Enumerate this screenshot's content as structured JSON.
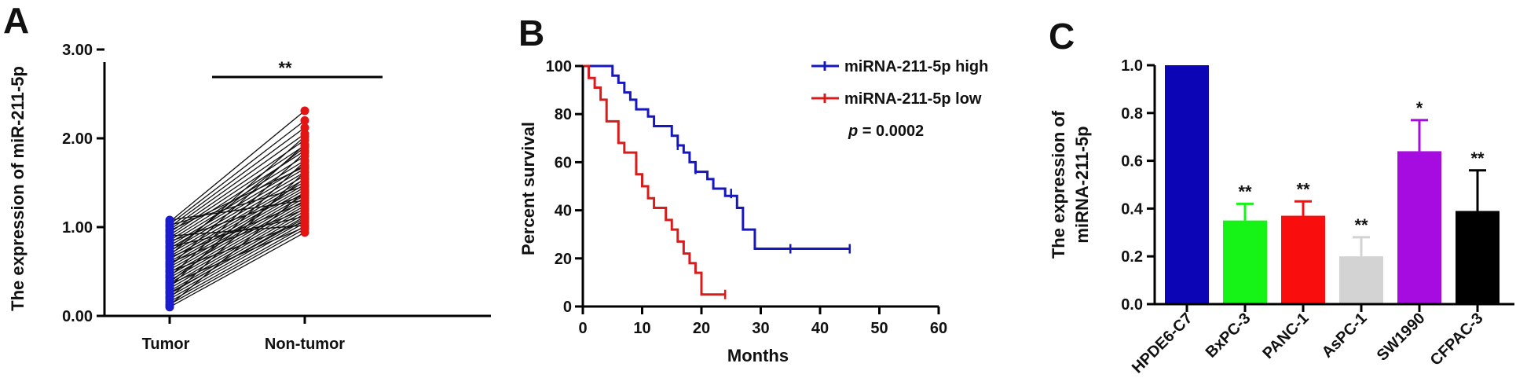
{
  "panel_labels": [
    "A",
    "B",
    "C"
  ],
  "colors": {
    "tumor": "#1c1ccf",
    "nontumor": "#e31414",
    "high": "#1717c0",
    "low": "#d81b1b",
    "axis": "#000000",
    "line": "#111111"
  },
  "panel_a": {
    "significance": "**"
  },
  "panel_b": {
    "pvalue_italic": "p",
    "pvalue_rest": " = 0.0002"
  },
  "panel_c": {
    "significance": [
      "",
      "**",
      "**",
      "**",
      "*",
      "**"
    ]
  },
  "chart_data": [
    {
      "type": "scatter",
      "title": "",
      "xlabel": "",
      "ylabel": "The expression of miR-211-5p",
      "ylim": [
        0,
        3
      ],
      "yticks": [
        "0.00",
        "1.00",
        "2.00",
        "3.00"
      ],
      "categories": [
        "Tumor",
        "Non-tumor"
      ],
      "pairs": [
        [
          0.1,
          0.94
        ],
        [
          0.13,
          0.98
        ],
        [
          0.16,
          1.01
        ],
        [
          0.19,
          1.05
        ],
        [
          0.22,
          1.08
        ],
        [
          0.25,
          1.12
        ],
        [
          0.28,
          1.15
        ],
        [
          0.31,
          1.18
        ],
        [
          0.34,
          1.21
        ],
        [
          0.37,
          1.24
        ],
        [
          0.4,
          1.27
        ],
        [
          0.43,
          1.3
        ],
        [
          0.46,
          1.33
        ],
        [
          0.49,
          1.36
        ],
        [
          0.52,
          1.39
        ],
        [
          0.55,
          1.42
        ],
        [
          0.58,
          1.45
        ],
        [
          0.61,
          1.48
        ],
        [
          0.64,
          1.51
        ],
        [
          0.67,
          1.54
        ],
        [
          0.7,
          1.58
        ],
        [
          0.73,
          1.62
        ],
        [
          0.76,
          1.66
        ],
        [
          0.79,
          1.7
        ],
        [
          0.82,
          1.75
        ],
        [
          0.85,
          1.8
        ],
        [
          0.88,
          1.86
        ],
        [
          0.91,
          1.92
        ],
        [
          0.94,
          1.98
        ],
        [
          0.97,
          2.05
        ],
        [
          1.0,
          2.12
        ],
        [
          1.03,
          2.2
        ],
        [
          1.06,
          2.31
        ],
        [
          0.12,
          1.4
        ],
        [
          0.2,
          1.62
        ],
        [
          0.26,
          1.1
        ],
        [
          0.33,
          1.74
        ],
        [
          0.36,
          1.0
        ],
        [
          0.44,
          1.84
        ],
        [
          0.5,
          1.06
        ],
        [
          0.56,
          1.93
        ],
        [
          0.6,
          1.2
        ],
        [
          0.66,
          1.28
        ],
        [
          0.72,
          1.9
        ],
        [
          0.78,
          1.12
        ],
        [
          0.84,
          1.36
        ],
        [
          0.9,
          1.02
        ],
        [
          0.96,
          1.68
        ],
        [
          1.02,
          1.46
        ],
        [
          1.08,
          1.3
        ],
        [
          0.38,
          1.55
        ],
        [
          0.68,
          2.02
        ]
      ],
      "significance": "**"
    },
    {
      "type": "line",
      "title": "",
      "xlabel": "Months",
      "ylabel": "Percent survival",
      "xlim": [
        0,
        60
      ],
      "ylim": [
        0,
        100
      ],
      "xticks": [
        "0",
        "10",
        "20",
        "30",
        "40",
        "50",
        "60"
      ],
      "yticks": [
        "0",
        "20",
        "40",
        "60",
        "80",
        "100"
      ],
      "series": [
        {
          "name": "miRNA-211-5p high",
          "steps": [
            [
              0,
              100
            ],
            [
              5,
              96
            ],
            [
              6,
              93
            ],
            [
              7,
              89
            ],
            [
              8,
              86
            ],
            [
              9,
              82
            ],
            [
              11,
              79
            ],
            [
              12,
              75
            ],
            [
              15,
              71
            ],
            [
              16,
              67
            ],
            [
              17,
              64
            ],
            [
              18,
              60
            ],
            [
              19,
              56
            ],
            [
              21,
              53
            ],
            [
              22,
              49
            ],
            [
              24,
              46
            ],
            [
              26,
              41
            ],
            [
              27,
              32
            ],
            [
              29,
              24
            ],
            [
              45,
              24
            ]
          ],
          "censor": [
            [
              16,
              67
            ],
            [
              19,
              57
            ],
            [
              25,
              47
            ],
            [
              35,
              24
            ],
            [
              45,
              24
            ]
          ]
        },
        {
          "name": "miRNA-211-5p low",
          "steps": [
            [
              0,
              100
            ],
            [
              1,
              95
            ],
            [
              2,
              91
            ],
            [
              3,
              86
            ],
            [
              4,
              77
            ],
            [
              6,
              68
            ],
            [
              7,
              64
            ],
            [
              9,
              55
            ],
            [
              10,
              50
            ],
            [
              11,
              45
            ],
            [
              12,
              41
            ],
            [
              14,
              36
            ],
            [
              15,
              32
            ],
            [
              16,
              27
            ],
            [
              17,
              22
            ],
            [
              18,
              18
            ],
            [
              19,
              14
            ],
            [
              20,
              5
            ],
            [
              24,
              5
            ]
          ],
          "censor": [
            [
              24,
              5
            ]
          ]
        }
      ],
      "annotation": "p = 0.0002"
    },
    {
      "type": "bar",
      "title": "",
      "xlabel": "",
      "ylabel": "The expression of miRNA-211-5p",
      "ylim": [
        0,
        1
      ],
      "yticks": [
        "0.0",
        "0.2",
        "0.4",
        "0.6",
        "0.8",
        "1.0"
      ],
      "categories": [
        "HPDE6-C7",
        "BxPC-3",
        "PANC-1",
        "AsPC-1",
        "SW1990",
        "CFPAC-3"
      ],
      "values": [
        1.0,
        0.35,
        0.37,
        0.2,
        0.64,
        0.39
      ],
      "errors": [
        0,
        0.07,
        0.06,
        0.08,
        0.13,
        0.17
      ],
      "colors": [
        "#0b05b5",
        "#16f316",
        "#f90d0d",
        "#d3d3d3",
        "#a60ce0",
        "#000000"
      ],
      "significance": [
        "",
        "**",
        "**",
        "**",
        "*",
        "**"
      ]
    }
  ]
}
